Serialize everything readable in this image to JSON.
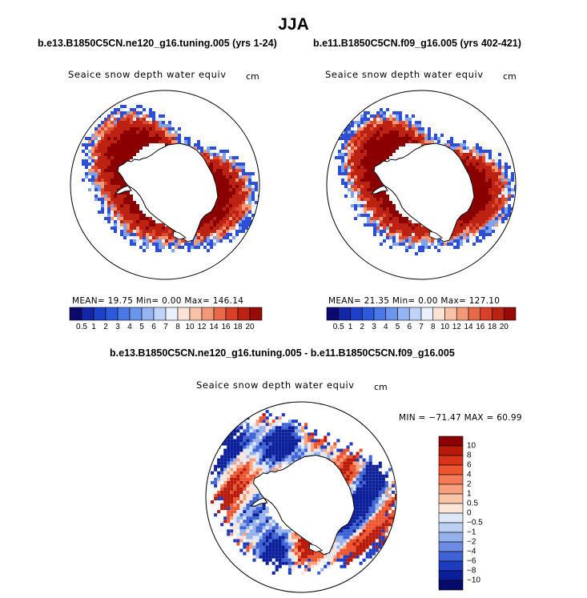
{
  "title": "JJA",
  "panels": [
    {
      "run": "b.e13.B1850C5CN.ne120_g16.tuning.005 (yrs 1-24)",
      "variable": "Seaice snow depth water equiv",
      "units": "cm",
      "stats": "MEAN=   19.75   Min=    0.00   Max=  146.14"
    },
    {
      "run": "b.e11.B1850C5CN.f09_g16.005 (yrs 402-421)",
      "variable": "Seaice snow depth water equiv",
      "units": "cm",
      "stats": "MEAN=   21.35   Min=    0.00   Max=  127.10"
    }
  ],
  "difference": {
    "title": "b.e13.B1850C5CN.ne120_g16.tuning.005 - b.e11.B1850C5CN.f09_g16.005",
    "variable": "Seaice snow depth water equiv",
    "units": "cm",
    "stats": "MIN = −71.47  MAX =   60.99"
  },
  "chart_data": [
    {
      "type": "heatmap",
      "projection": "south-polar-stereographic",
      "title": "b.e13.B1850C5CN.ne120_g16.tuning.005 (yrs 1-24)",
      "field": "Seaice snow depth water equiv",
      "units": "cm",
      "mean": 19.75,
      "min": 0.0,
      "max": 146.14,
      "colorbar": {
        "orientation": "horizontal",
        "levels": [
          "0.5",
          "1",
          "2",
          "3",
          "4",
          "5",
          "6",
          "7",
          "8",
          "10",
          "12",
          "14",
          "16",
          "18",
          "20"
        ],
        "colors": [
          "#0a0a6e",
          "#1427a8",
          "#1e40c8",
          "#2e5bdc",
          "#4a78e4",
          "#6b95ec",
          "#94b5f2",
          "#bfd2f7",
          "#eaf0fb",
          "#fbe3d6",
          "#f8c2a6",
          "#f29a77",
          "#e8684a",
          "#d8402a",
          "#bb2212",
          "#960b05"
        ]
      }
    },
    {
      "type": "heatmap",
      "projection": "south-polar-stereographic",
      "title": "b.e11.B1850C5CN.f09_g16.005 (yrs 402-421)",
      "field": "Seaice snow depth water equiv",
      "units": "cm",
      "mean": 21.35,
      "min": 0.0,
      "max": 127.1,
      "colorbar": {
        "orientation": "horizontal",
        "levels": [
          "0.5",
          "1",
          "2",
          "3",
          "4",
          "5",
          "6",
          "7",
          "8",
          "10",
          "12",
          "14",
          "16",
          "18",
          "20"
        ],
        "colors": [
          "#0a0a6e",
          "#1427a8",
          "#1e40c8",
          "#2e5bdc",
          "#4a78e4",
          "#6b95ec",
          "#94b5f2",
          "#bfd2f7",
          "#eaf0fb",
          "#fbe3d6",
          "#f8c2a6",
          "#f29a77",
          "#e8684a",
          "#d8402a",
          "#bb2212",
          "#960b05"
        ]
      }
    },
    {
      "type": "heatmap",
      "projection": "south-polar-stereographic",
      "title": "b.e13.B1850C5CN.ne120_g16.tuning.005 - b.e11.B1850C5CN.f09_g16.005",
      "field": "Seaice snow depth water equiv",
      "units": "cm",
      "min": -71.47,
      "max": 60.99,
      "colorbar": {
        "orientation": "vertical",
        "levels": [
          "10",
          "8",
          "6",
          "4",
          "2",
          "1",
          "0.5",
          "0",
          "−0.5",
          "−1",
          "−2",
          "−4",
          "−6",
          "−8",
          "−10"
        ],
        "colors": [
          "#8a0000",
          "#b81a0a",
          "#d8341a",
          "#ec5530",
          "#f47b55",
          "#f7a07e",
          "#f9c3a8",
          "#fde6d8",
          "#dde8f8",
          "#bcd0f3",
          "#95b1ec",
          "#6b8ce2",
          "#3f63d4",
          "#1d3cc0",
          "#0c1f9a",
          "#060a6a"
        ]
      }
    }
  ]
}
